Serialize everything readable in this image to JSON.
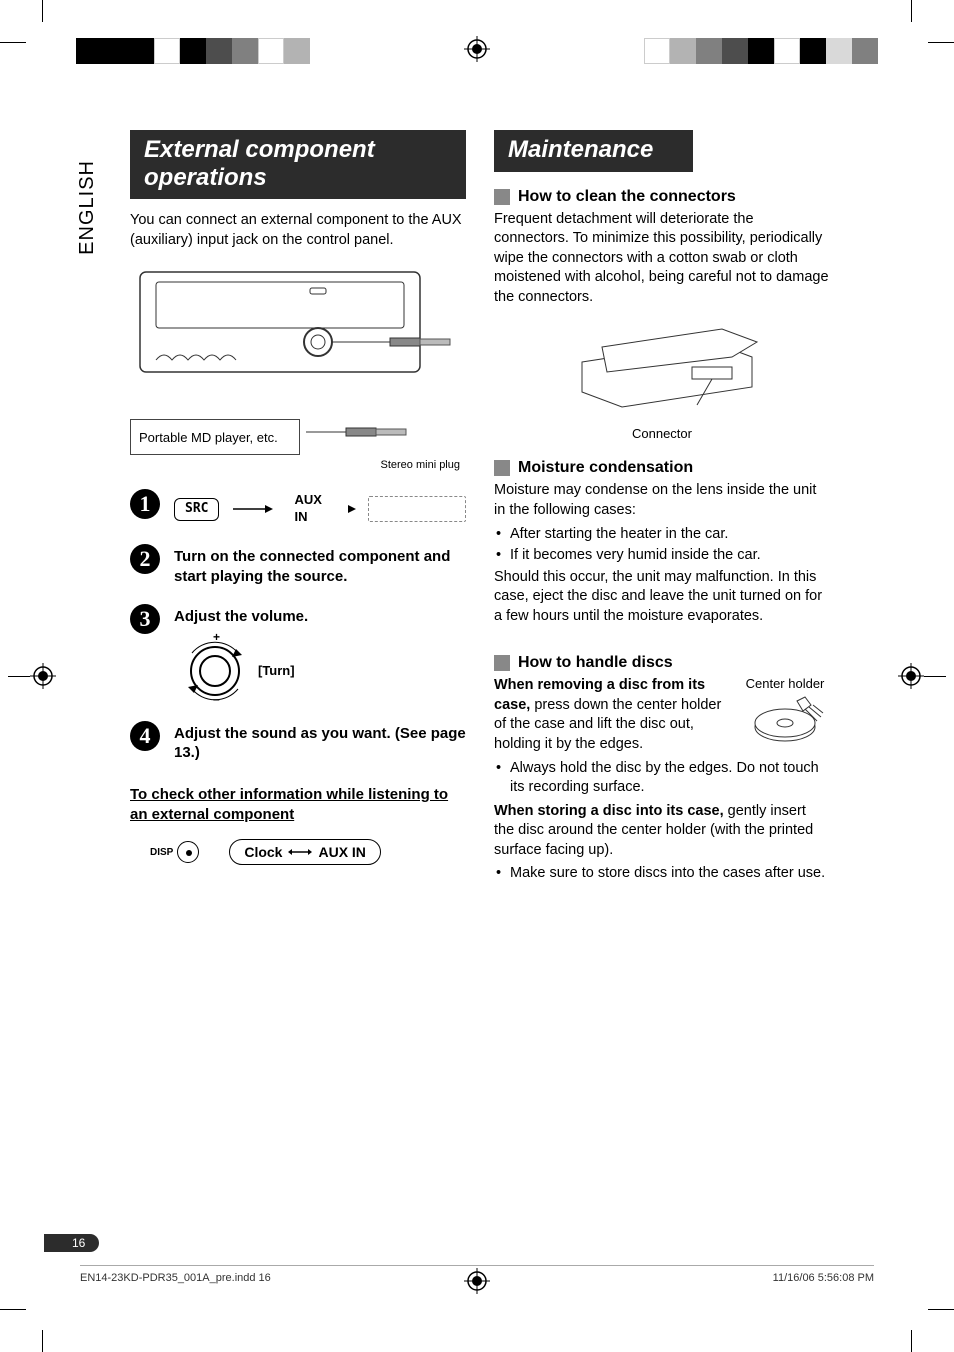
{
  "lang_tab": "ENGLISH",
  "left": {
    "title": "External component operations",
    "intro": "You can connect an external component to the AUX (auxiliary) input jack on the control panel.",
    "diagram": {
      "md_label": "Portable MD player, etc.",
      "plug_label": "Stereo mini plug"
    },
    "steps": {
      "s1": {
        "num": "1",
        "src_btn": "SRC",
        "aux_label": "AUX IN"
      },
      "s2": {
        "num": "2",
        "text": "Turn on the connected component and start playing the source."
      },
      "s3": {
        "num": "3",
        "text": "Adjust the volume.",
        "turn_label": "[Turn]"
      },
      "s4": {
        "num": "4",
        "text": "Adjust the sound as you want. (See page 13.)"
      }
    },
    "check_heading": "To check other information while listening to an external component",
    "disp_label": "DISP",
    "clock_pill": {
      "a": "Clock",
      "b": "AUX IN"
    }
  },
  "right": {
    "title": "Maintenance",
    "clean": {
      "heading": "How to clean the connectors",
      "text": "Frequent detachment will deteriorate the connectors. To minimize this possibility, periodically wipe the connectors with a cotton swab or cloth moistened with alcohol, being careful not to damage the connectors.",
      "connector_label": "Connector"
    },
    "moisture": {
      "heading": "Moisture condensation",
      "intro": "Moisture may condense on the lens inside the unit in the following cases:",
      "b1": "After starting the heater in the car.",
      "b2": "If it becomes very humid inside the car.",
      "outro": "Should this occur, the unit may malfunction. In this case, eject the disc and leave the unit turned on for a few hours until the moisture evaporates."
    },
    "discs": {
      "heading": "How to handle discs",
      "removing_bold": "When removing a disc from its case,",
      "removing_rest": " press down the center holder of the case and lift the disc out, holding it by the edges.",
      "center_holder_label": "Center holder",
      "b1": "Always hold the disc by the edges. Do not touch its recording surface.",
      "storing_bold": "When storing a disc into its case,",
      "storing_rest": " gently insert the disc around the center holder (with the printed surface facing up).",
      "b2": "Make sure to store discs into the cases after use."
    }
  },
  "page_number": "16",
  "footer": {
    "file": "EN14-23KD-PDR35_001A_pre.indd   16",
    "date": "11/16/06   5:56:08 PM"
  },
  "colors": {
    "bar_left": [
      "#000000",
      "#000000",
      "#000000",
      "#ffffff",
      "#000000",
      "#4d4d4d",
      "#808080",
      "#ffffff",
      "#b3b3b3"
    ],
    "bar_right": [
      "#ffffff",
      "#b3b3b3",
      "#808080",
      "#4d4d4d",
      "#000000",
      "#ffffff",
      "#000000",
      "#d9d9d9",
      "#808080"
    ]
  }
}
